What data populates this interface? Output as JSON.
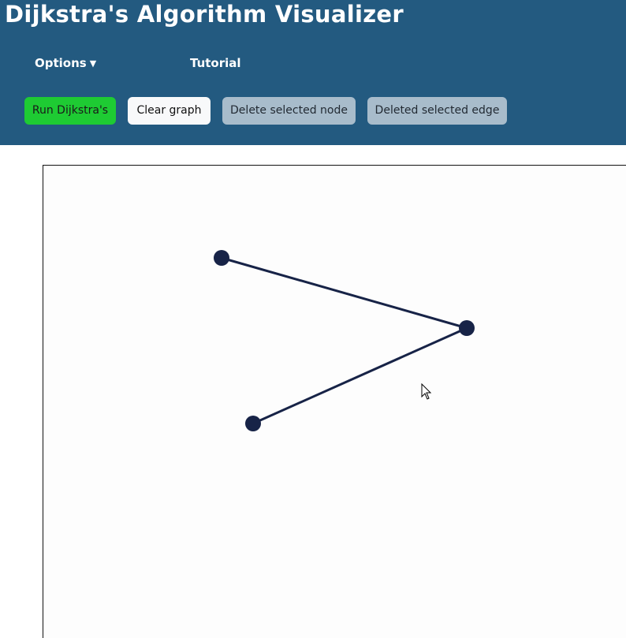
{
  "header": {
    "title": "Dijkstra's Algorithm Visualizer",
    "background_color": "#235a80"
  },
  "nav": {
    "options_label": "Options",
    "options_caret": "▼",
    "tutorial_label": "Tutorial"
  },
  "toolbar": {
    "run_label": "Run Dijkstra's",
    "clear_label": "Clear graph",
    "delete_node_label": "Delete selected node",
    "delete_edge_label": "Deleted selected edge",
    "run_color": "#1ecb33",
    "disabled_color": "#a8bccb"
  },
  "graph": {
    "node_color": "#172347",
    "edge_color": "#172347",
    "node_count": 3,
    "edge_count": 2
  },
  "cursor": {
    "icon": "arrow-cursor-icon"
  }
}
